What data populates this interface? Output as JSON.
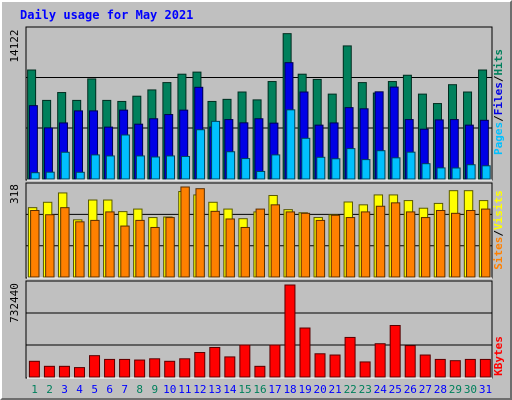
{
  "title": "Daily usage for May 2021",
  "colors": {
    "background": "#c0c0c0",
    "hits": "#00805c",
    "files": "#0000e6",
    "pages": "#00c0ff",
    "visits": "#ffff00",
    "sites": "#ff8000",
    "kbytes": "#ff0000",
    "weekend_label": "#00805c",
    "weekday_label": "#0000ff"
  },
  "legend": {
    "top": {
      "pages": "Pages",
      "files": "Files",
      "hits": "Hits",
      "sep": "/"
    },
    "middle": {
      "sites": "Sites",
      "visits": "Visits",
      "sep": "/"
    },
    "bottom": {
      "kbytes": "KBytes"
    }
  },
  "chart_data": [
    {
      "type": "bar",
      "panel": "hits-files-pages",
      "categories": [
        "1",
        "2",
        "3",
        "4",
        "5",
        "6",
        "7",
        "8",
        "9",
        "10",
        "11",
        "12",
        "13",
        "14",
        "15",
        "16",
        "17",
        "18",
        "19",
        "20",
        "21",
        "22",
        "23",
        "24",
        "25",
        "26",
        "27",
        "28",
        "29",
        "30",
        "31"
      ],
      "weekend_days": [
        "1",
        "2",
        "8",
        "9",
        "15",
        "16",
        "22",
        "23",
        "29",
        "30"
      ],
      "ymax_label": "14122",
      "ylim": [
        0,
        14122
      ],
      "series": [
        {
          "name": "Hits",
          "values": [
            10400,
            7500,
            8250,
            7500,
            9550,
            7500,
            7400,
            7900,
            8500,
            9200,
            10000,
            10200,
            7400,
            7600,
            8300,
            7550,
            9300,
            13870,
            10000,
            9500,
            8100,
            12700,
            9200,
            8200,
            9300,
            9900,
            8100,
            7200,
            9000,
            8300,
            10400
          ]
        },
        {
          "name": "Files",
          "values": [
            7000,
            4880,
            5350,
            6500,
            6500,
            4950,
            6570,
            5230,
            5750,
            6150,
            6570,
            8750,
            4950,
            5670,
            5360,
            5750,
            5330,
            11100,
            8300,
            5140,
            5350,
            6810,
            6700,
            8320,
            8770,
            5670,
            4750,
            5640,
            5670,
            5140,
            5600
          ]
        },
        {
          "name": "Pages",
          "values": [
            600,
            650,
            2550,
            640,
            2300,
            2200,
            4200,
            2200,
            2100,
            2200,
            2150,
            4700,
            5500,
            2600,
            1950,
            720,
            2300,
            6600,
            3880,
            2070,
            1930,
            2900,
            1850,
            2700,
            2020,
            2560,
            1460,
            1060,
            1050,
            1360,
            1260
          ]
        }
      ]
    },
    {
      "type": "bar",
      "panel": "visits-sites",
      "categories": [
        "1",
        "2",
        "3",
        "4",
        "5",
        "6",
        "7",
        "8",
        "9",
        "10",
        "11",
        "12",
        "13",
        "14",
        "15",
        "16",
        "17",
        "18",
        "19",
        "20",
        "21",
        "22",
        "23",
        "24",
        "25",
        "26",
        "27",
        "28",
        "29",
        "30",
        "31"
      ],
      "ymax_label": "318",
      "ylim": [
        0,
        318
      ],
      "series": [
        {
          "name": "Visits",
          "values": [
            245,
            264,
            297,
            202,
            272,
            272,
            231,
            240,
            210,
            212,
            302,
            290,
            264,
            240,
            206,
            230,
            288,
            238,
            227,
            210,
            220,
            265,
            255,
            290,
            290,
            270,
            243,
            260,
            305,
            305,
            270
          ]
        },
        {
          "name": "Sites",
          "values": [
            235,
            220,
            245,
            195,
            200,
            230,
            180,
            200,
            175,
            210,
            318,
            312,
            232,
            205,
            175,
            240,
            255,
            230,
            225,
            200,
            218,
            210,
            230,
            250,
            262,
            230,
            210,
            235,
            225,
            235,
            240
          ]
        }
      ]
    },
    {
      "type": "bar",
      "panel": "kbytes",
      "categories": [
        "1",
        "2",
        "3",
        "4",
        "5",
        "6",
        "7",
        "8",
        "9",
        "10",
        "11",
        "12",
        "13",
        "14",
        "15",
        "16",
        "17",
        "18",
        "19",
        "20",
        "21",
        "22",
        "23",
        "24",
        "25",
        "26",
        "27",
        "28",
        "29",
        "30",
        "31"
      ],
      "ymax_label": "732440",
      "ylim": [
        0,
        732440
      ],
      "series": [
        {
          "name": "KBytes",
          "values": [
            125000,
            85000,
            85000,
            75000,
            170000,
            140000,
            140000,
            135000,
            145000,
            125000,
            145000,
            195000,
            235000,
            160000,
            255000,
            85000,
            255000,
            732440,
            390000,
            185000,
            175000,
            315000,
            120000,
            265000,
            410000,
            250000,
            175000,
            140000,
            130000,
            140000,
            140000
          ]
        }
      ]
    }
  ]
}
